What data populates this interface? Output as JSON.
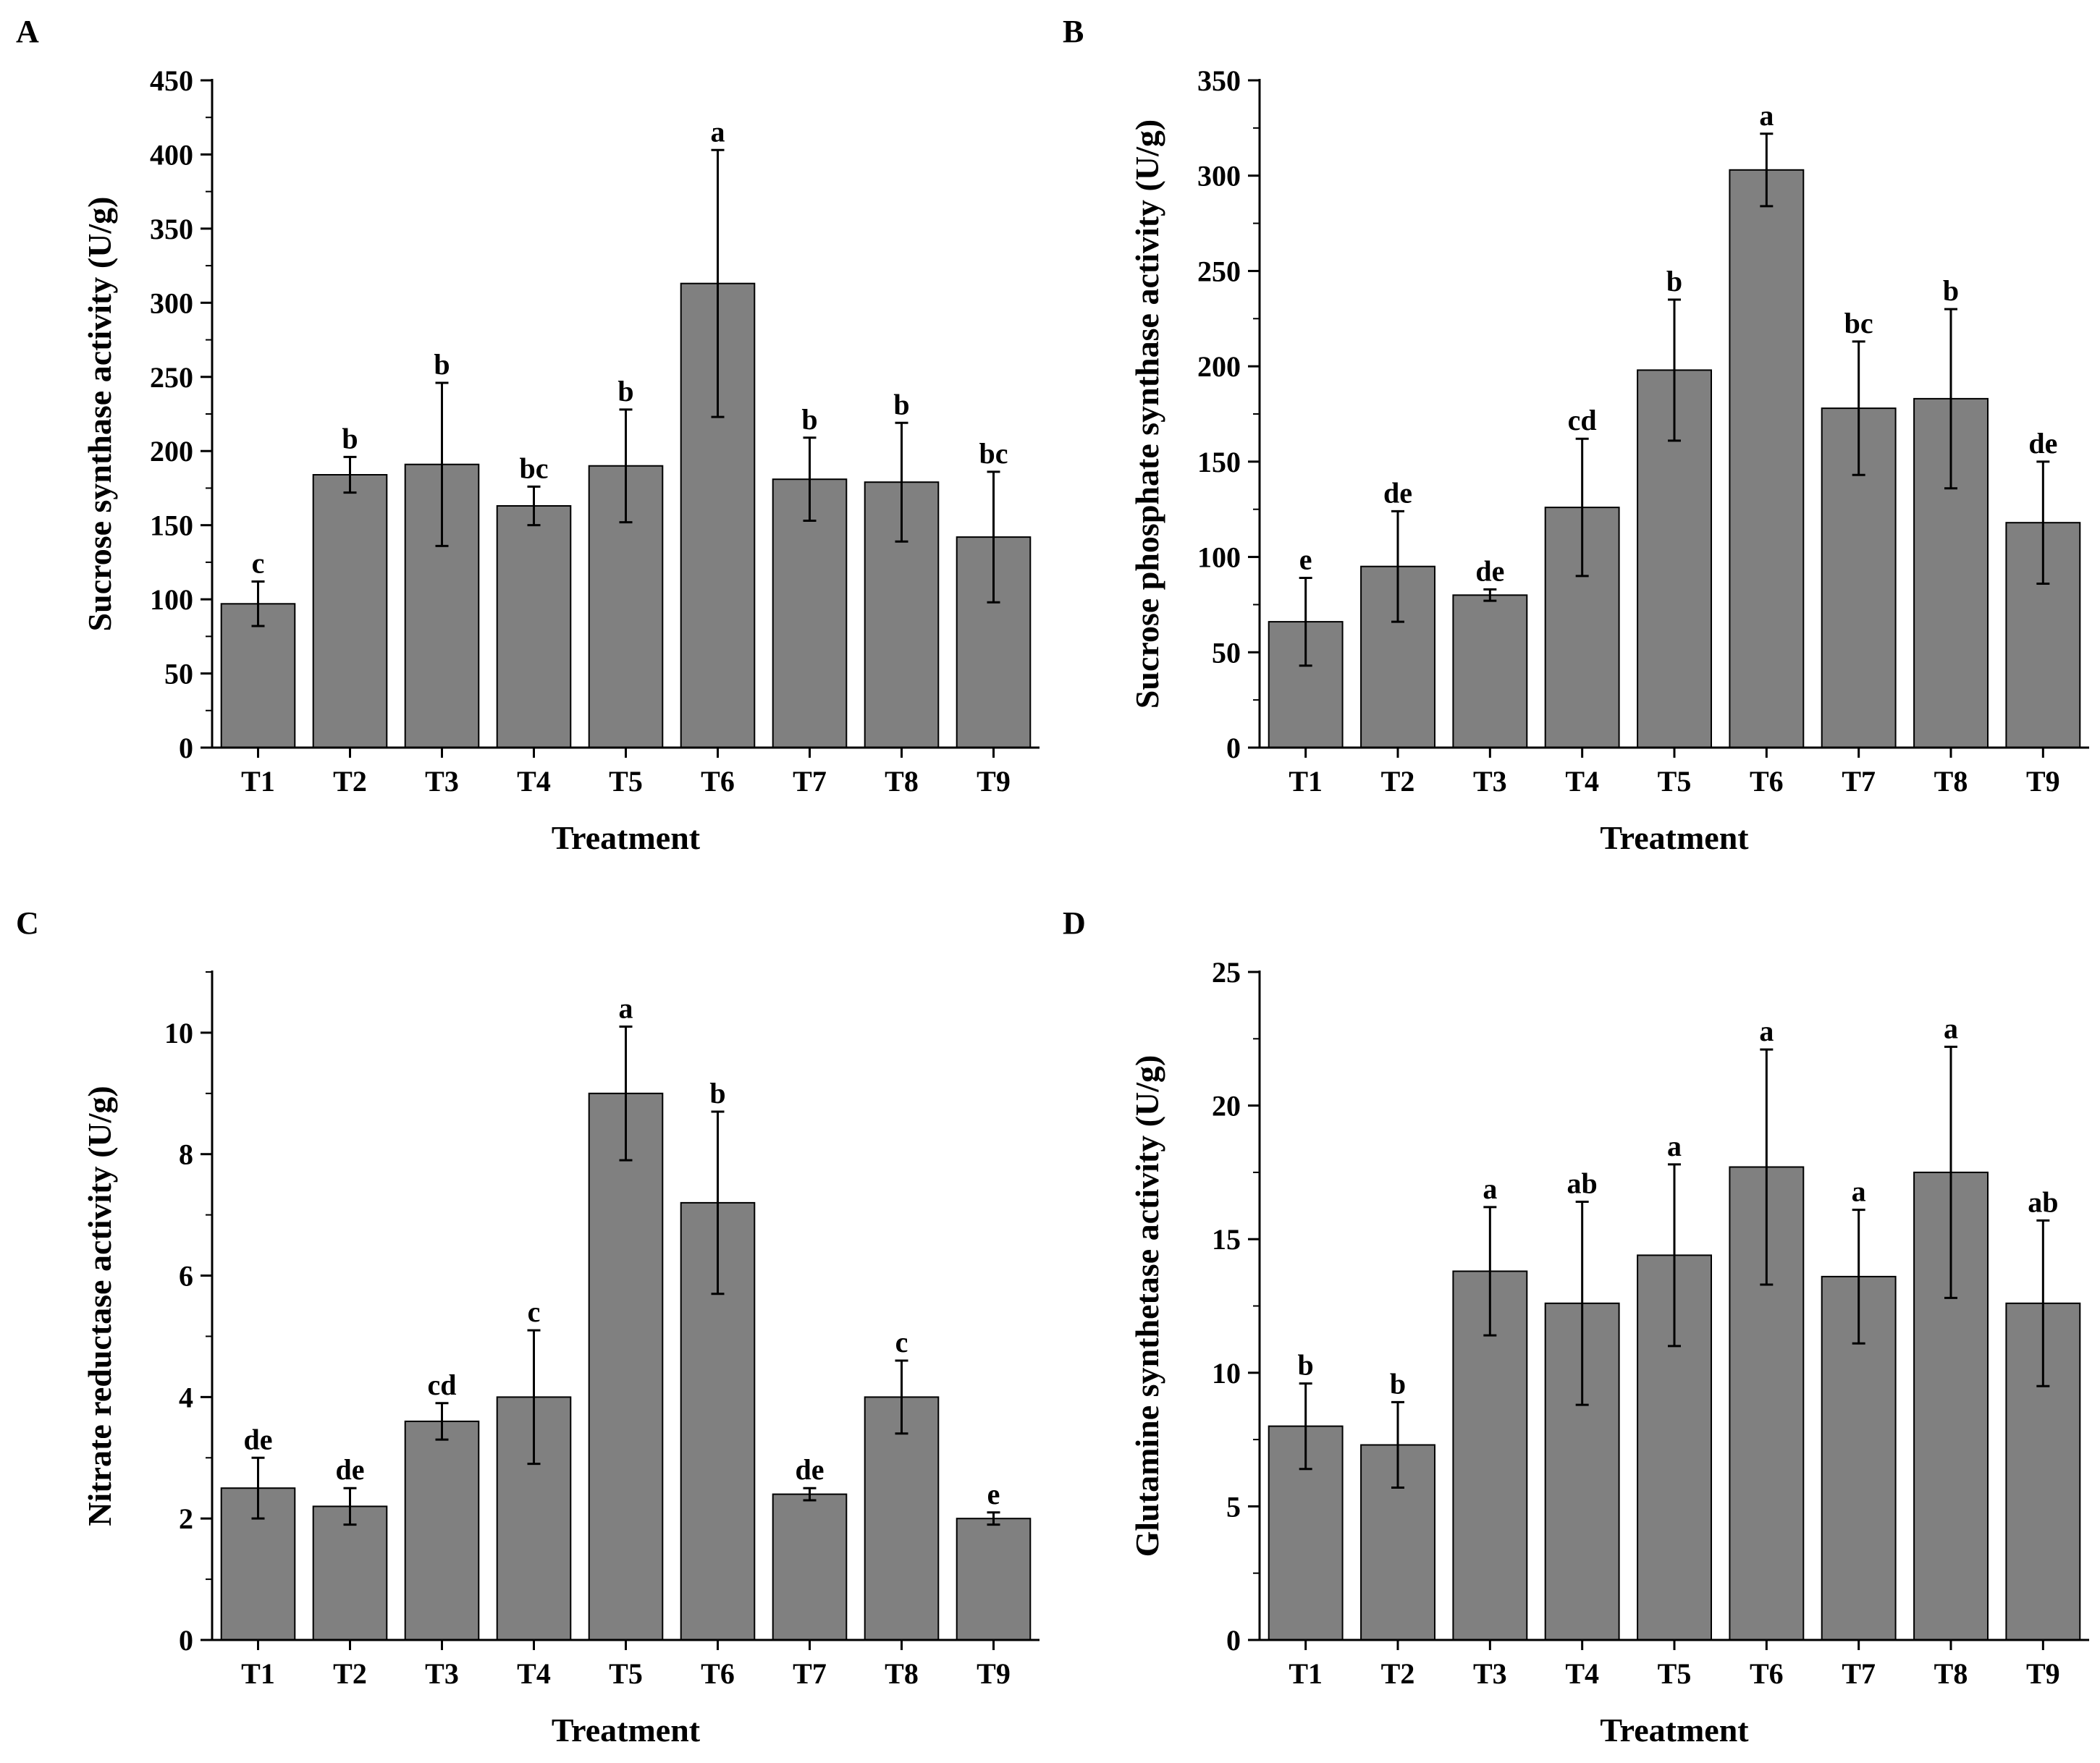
{
  "figure": {
    "bar_color": "#808080",
    "axis_color": "#000000"
  },
  "chart_data": [
    {
      "panel": "A",
      "type": "bar",
      "xlabel": "Treatment",
      "ylabel": "Sucrose synthase activity (U/g)",
      "categories": [
        "T1",
        "T2",
        "T3",
        "T4",
        "T5",
        "T6",
        "T7",
        "T8",
        "T9"
      ],
      "values": [
        97,
        184,
        191,
        163,
        190,
        313,
        181,
        179,
        142
      ],
      "errors": [
        15,
        12,
        55,
        13,
        38,
        90,
        28,
        40,
        44
      ],
      "significance": [
        "c",
        "b",
        "b",
        "bc",
        "b",
        "a",
        "b",
        "b",
        "bc"
      ],
      "ylim": [
        0,
        450
      ],
      "yticks": [
        0,
        50,
        100,
        150,
        200,
        250,
        300,
        350,
        400,
        450
      ],
      "ytick_labels": [
        "0",
        "50",
        "100",
        "150",
        "200",
        "250",
        "300",
        "350",
        "400",
        "450"
      ]
    },
    {
      "panel": "B",
      "type": "bar",
      "xlabel": "Treatment",
      "ylabel": "Sucrose phosphate synthase activity (U/g)",
      "categories": [
        "T1",
        "T2",
        "T3",
        "T4",
        "T5",
        "T6",
        "T7",
        "T8",
        "T9"
      ],
      "values": [
        66,
        95,
        80,
        126,
        198,
        303,
        178,
        183,
        118
      ],
      "errors": [
        23,
        29,
        3,
        36,
        37,
        19,
        35,
        47,
        32
      ],
      "significance": [
        "e",
        "de",
        "de",
        "cd",
        "b",
        "a",
        "bc",
        "b",
        "de"
      ],
      "ylim": [
        0,
        350
      ],
      "yticks": [
        0,
        50,
        100,
        150,
        200,
        250,
        300,
        350
      ],
      "ytick_labels": [
        "0",
        "50",
        "100",
        "150",
        "200",
        "250",
        "300",
        "350"
      ]
    },
    {
      "panel": "C",
      "type": "bar",
      "xlabel": "Treatment",
      "ylabel": "Nitrate reductase activity (U/g)",
      "categories": [
        "T1",
        "T2",
        "T3",
        "T4",
        "T5",
        "T6",
        "T7",
        "T8",
        "T9"
      ],
      "values": [
        2.5,
        2.2,
        3.6,
        4.0,
        9.0,
        7.2,
        2.4,
        4.0,
        2.0
      ],
      "errors": [
        0.5,
        0.3,
        0.3,
        1.1,
        1.1,
        1.5,
        0.1,
        0.6,
        0.1
      ],
      "significance": [
        "de",
        "de",
        "cd",
        "c",
        "a",
        "b",
        "de",
        "c",
        "e"
      ],
      "ylim": [
        0,
        11
      ],
      "yticks": [
        0,
        2,
        4,
        6,
        8,
        10
      ],
      "ytick_labels": [
        "0",
        "2",
        "4",
        "6",
        "8",
        "10"
      ]
    },
    {
      "panel": "D",
      "type": "bar",
      "xlabel": "Treatment",
      "ylabel": "Glutamine synthetase activity (U/g)",
      "categories": [
        "T1",
        "T2",
        "T3",
        "T4",
        "T5",
        "T6",
        "T7",
        "T8",
        "T9"
      ],
      "values": [
        8.0,
        7.3,
        13.8,
        12.6,
        14.4,
        17.7,
        13.6,
        17.5,
        12.6
      ],
      "errors": [
        1.6,
        1.6,
        2.4,
        3.8,
        3.4,
        4.4,
        2.5,
        4.7,
        3.1
      ],
      "significance": [
        "b",
        "b",
        "a",
        "ab",
        "a",
        "a",
        "a",
        "a",
        "ab"
      ],
      "ylim": [
        0,
        25
      ],
      "yticks": [
        0,
        5,
        10,
        15,
        20,
        25
      ],
      "ytick_labels": [
        "0",
        "5",
        "10",
        "15",
        "20",
        "25"
      ]
    }
  ]
}
